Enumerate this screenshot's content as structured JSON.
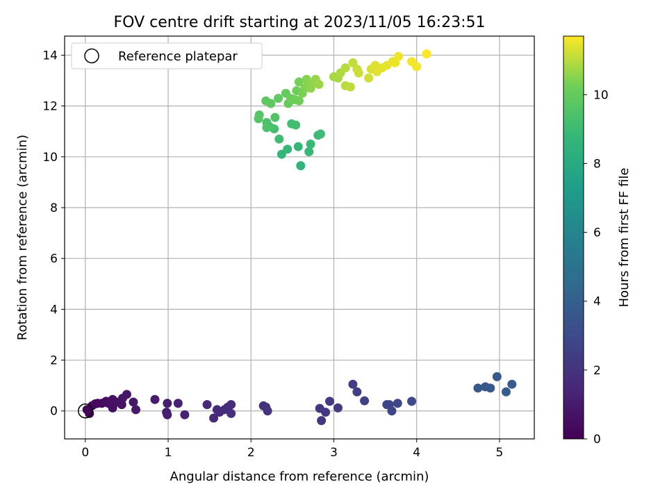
{
  "chart_data": {
    "type": "scatter",
    "title": "FOV centre drift starting at 2023/11/05 16:23:51",
    "xlabel": "Angular distance from reference (arcmin)",
    "ylabel": "Rotation from reference (arcmin)",
    "xlim": [
      -0.25,
      5.42
    ],
    "ylim": [
      -1.1,
      14.75
    ],
    "xticks": [
      0,
      1,
      2,
      3,
      4,
      5
    ],
    "yticks": [
      0,
      2,
      4,
      6,
      8,
      10,
      12,
      14
    ],
    "grid": true,
    "legend": {
      "position": "upper-left",
      "entries": [
        "Reference platepar"
      ]
    },
    "reference_point": {
      "x": 0,
      "y": 0,
      "marker": "open-circle"
    },
    "colorbar": {
      "label": "Hours from first FF file",
      "colormap": "viridis",
      "range": [
        0,
        11.7
      ],
      "ticks": [
        0,
        2,
        4,
        6,
        8,
        10
      ]
    },
    "points": [
      {
        "x": 0.02,
        "y": 0.05,
        "c": 0.1
      },
      {
        "x": 0.05,
        "y": -0.1,
        "c": 0.15
      },
      {
        "x": 0.08,
        "y": 0.2,
        "c": 0.2
      },
      {
        "x": 0.12,
        "y": 0.28,
        "c": 0.3
      },
      {
        "x": 0.15,
        "y": 0.3,
        "c": 0.35
      },
      {
        "x": 0.2,
        "y": 0.3,
        "c": 0.4
      },
      {
        "x": 0.25,
        "y": 0.38,
        "c": 0.45
      },
      {
        "x": 0.28,
        "y": 0.3,
        "c": 0.5
      },
      {
        "x": 0.33,
        "y": 0.12,
        "c": 0.55
      },
      {
        "x": 0.33,
        "y": 0.45,
        "c": 0.6
      },
      {
        "x": 0.38,
        "y": 0.35,
        "c": 0.65
      },
      {
        "x": 0.44,
        "y": 0.25,
        "c": 0.7
      },
      {
        "x": 0.45,
        "y": 0.5,
        "c": 0.75
      },
      {
        "x": 0.5,
        "y": 0.65,
        "c": 0.8
      },
      {
        "x": 0.58,
        "y": 0.35,
        "c": 0.85
      },
      {
        "x": 0.61,
        "y": 0.05,
        "c": 0.9
      },
      {
        "x": 0.84,
        "y": 0.45,
        "c": 1.0
      },
      {
        "x": 0.99,
        "y": 0.3,
        "c": 1.05
      },
      {
        "x": 0.98,
        "y": -0.05,
        "c": 1.1
      },
      {
        "x": 0.99,
        "y": -0.15,
        "c": 1.15
      },
      {
        "x": 1.12,
        "y": 0.3,
        "c": 1.2
      },
      {
        "x": 1.2,
        "y": -0.15,
        "c": 1.25
      },
      {
        "x": 1.47,
        "y": 0.25,
        "c": 1.45
      },
      {
        "x": 1.55,
        "y": -0.28,
        "c": 1.5
      },
      {
        "x": 1.59,
        "y": 0.05,
        "c": 1.55
      },
      {
        "x": 1.62,
        "y": -0.05,
        "c": 1.6
      },
      {
        "x": 1.68,
        "y": 0.05,
        "c": 1.65
      },
      {
        "x": 1.72,
        "y": 0.15,
        "c": 1.7
      },
      {
        "x": 1.76,
        "y": 0.25,
        "c": 1.75
      },
      {
        "x": 1.76,
        "y": -0.1,
        "c": 1.8
      },
      {
        "x": 2.15,
        "y": 0.2,
        "c": 1.9
      },
      {
        "x": 2.18,
        "y": 0.15,
        "c": 1.95
      },
      {
        "x": 2.2,
        "y": 0.0,
        "c": 2.0
      },
      {
        "x": 2.83,
        "y": 0.1,
        "c": 2.1
      },
      {
        "x": 2.85,
        "y": -0.38,
        "c": 2.15
      },
      {
        "x": 2.9,
        "y": -0.05,
        "c": 2.2
      },
      {
        "x": 2.95,
        "y": 0.38,
        "c": 2.25
      },
      {
        "x": 3.05,
        "y": 0.12,
        "c": 2.3
      },
      {
        "x": 3.23,
        "y": 1.05,
        "c": 2.45
      },
      {
        "x": 3.28,
        "y": 0.75,
        "c": 2.5
      },
      {
        "x": 3.37,
        "y": 0.4,
        "c": 2.55
      },
      {
        "x": 3.64,
        "y": 0.25,
        "c": 2.7
      },
      {
        "x": 3.67,
        "y": 0.25,
        "c": 2.75
      },
      {
        "x": 3.7,
        "y": 0.0,
        "c": 2.8
      },
      {
        "x": 3.77,
        "y": 0.3,
        "c": 2.85
      },
      {
        "x": 3.94,
        "y": 0.38,
        "c": 2.95
      },
      {
        "x": 4.74,
        "y": 0.9,
        "c": 3.6
      },
      {
        "x": 4.83,
        "y": 0.95,
        "c": 3.65
      },
      {
        "x": 4.89,
        "y": 0.9,
        "c": 3.7
      },
      {
        "x": 4.97,
        "y": 1.35,
        "c": 3.75
      },
      {
        "x": 5.08,
        "y": 0.75,
        "c": 3.8
      },
      {
        "x": 5.15,
        "y": 1.05,
        "c": 3.85
      },
      {
        "x": 2.6,
        "y": 9.65,
        "c": 8.6
      },
      {
        "x": 2.37,
        "y": 10.1,
        "c": 8.7
      },
      {
        "x": 2.44,
        "y": 10.3,
        "c": 8.75
      },
      {
        "x": 2.57,
        "y": 10.4,
        "c": 8.8
      },
      {
        "x": 2.7,
        "y": 10.2,
        "c": 8.85
      },
      {
        "x": 2.72,
        "y": 10.5,
        "c": 8.9
      },
      {
        "x": 2.81,
        "y": 10.85,
        "c": 8.95
      },
      {
        "x": 2.84,
        "y": 10.9,
        "c": 9.0
      },
      {
        "x": 2.34,
        "y": 10.7,
        "c": 9.05
      },
      {
        "x": 2.49,
        "y": 11.3,
        "c": 9.1
      },
      {
        "x": 2.54,
        "y": 11.25,
        "c": 9.15
      },
      {
        "x": 2.28,
        "y": 11.1,
        "c": 9.2
      },
      {
        "x": 2.22,
        "y": 11.2,
        "c": 9.3
      },
      {
        "x": 2.19,
        "y": 11.35,
        "c": 9.35
      },
      {
        "x": 2.19,
        "y": 11.15,
        "c": 9.4
      },
      {
        "x": 2.29,
        "y": 11.55,
        "c": 9.5
      },
      {
        "x": 2.09,
        "y": 11.5,
        "c": 9.6
      },
      {
        "x": 2.1,
        "y": 11.65,
        "c": 9.65
      },
      {
        "x": 2.18,
        "y": 12.2,
        "c": 9.8
      },
      {
        "x": 2.24,
        "y": 12.1,
        "c": 9.85
      },
      {
        "x": 2.33,
        "y": 12.3,
        "c": 9.9
      },
      {
        "x": 2.42,
        "y": 12.5,
        "c": 10.0
      },
      {
        "x": 2.45,
        "y": 12.1,
        "c": 10.05
      },
      {
        "x": 2.48,
        "y": 12.3,
        "c": 10.1
      },
      {
        "x": 2.53,
        "y": 12.25,
        "c": 10.15
      },
      {
        "x": 2.55,
        "y": 12.6,
        "c": 10.2
      },
      {
        "x": 2.58,
        "y": 12.2,
        "c": 10.25
      },
      {
        "x": 2.58,
        "y": 12.95,
        "c": 10.3
      },
      {
        "x": 2.62,
        "y": 12.5,
        "c": 10.35
      },
      {
        "x": 2.65,
        "y": 12.7,
        "c": 10.4
      },
      {
        "x": 2.67,
        "y": 13.05,
        "c": 10.45
      },
      {
        "x": 2.69,
        "y": 12.85,
        "c": 10.5
      },
      {
        "x": 2.72,
        "y": 12.7,
        "c": 10.55
      },
      {
        "x": 2.76,
        "y": 12.9,
        "c": 10.6
      },
      {
        "x": 2.78,
        "y": 13.05,
        "c": 10.65
      },
      {
        "x": 2.82,
        "y": 12.85,
        "c": 10.7
      },
      {
        "x": 3.0,
        "y": 13.15,
        "c": 10.8
      },
      {
        "x": 3.05,
        "y": 13.1,
        "c": 10.85
      },
      {
        "x": 3.08,
        "y": 13.3,
        "c": 10.9
      },
      {
        "x": 3.14,
        "y": 13.5,
        "c": 10.95
      },
      {
        "x": 3.14,
        "y": 12.8,
        "c": 11.0
      },
      {
        "x": 3.2,
        "y": 12.75,
        "c": 11.05
      },
      {
        "x": 3.23,
        "y": 13.7,
        "c": 11.1
      },
      {
        "x": 3.28,
        "y": 13.45,
        "c": 11.15
      },
      {
        "x": 3.3,
        "y": 13.3,
        "c": 11.2
      },
      {
        "x": 3.42,
        "y": 13.1,
        "c": 11.25
      },
      {
        "x": 3.45,
        "y": 13.45,
        "c": 11.3
      },
      {
        "x": 3.5,
        "y": 13.6,
        "c": 11.35
      },
      {
        "x": 3.52,
        "y": 13.35,
        "c": 11.4
      },
      {
        "x": 3.58,
        "y": 13.5,
        "c": 11.42
      },
      {
        "x": 3.64,
        "y": 13.6,
        "c": 11.45
      },
      {
        "x": 3.71,
        "y": 13.75,
        "c": 11.5
      },
      {
        "x": 3.74,
        "y": 13.7,
        "c": 11.52
      },
      {
        "x": 3.78,
        "y": 13.95,
        "c": 11.55
      },
      {
        "x": 3.94,
        "y": 13.75,
        "c": 11.6
      },
      {
        "x": 4.0,
        "y": 13.55,
        "c": 11.62
      },
      {
        "x": 4.12,
        "y": 14.05,
        "c": 11.7
      }
    ]
  }
}
